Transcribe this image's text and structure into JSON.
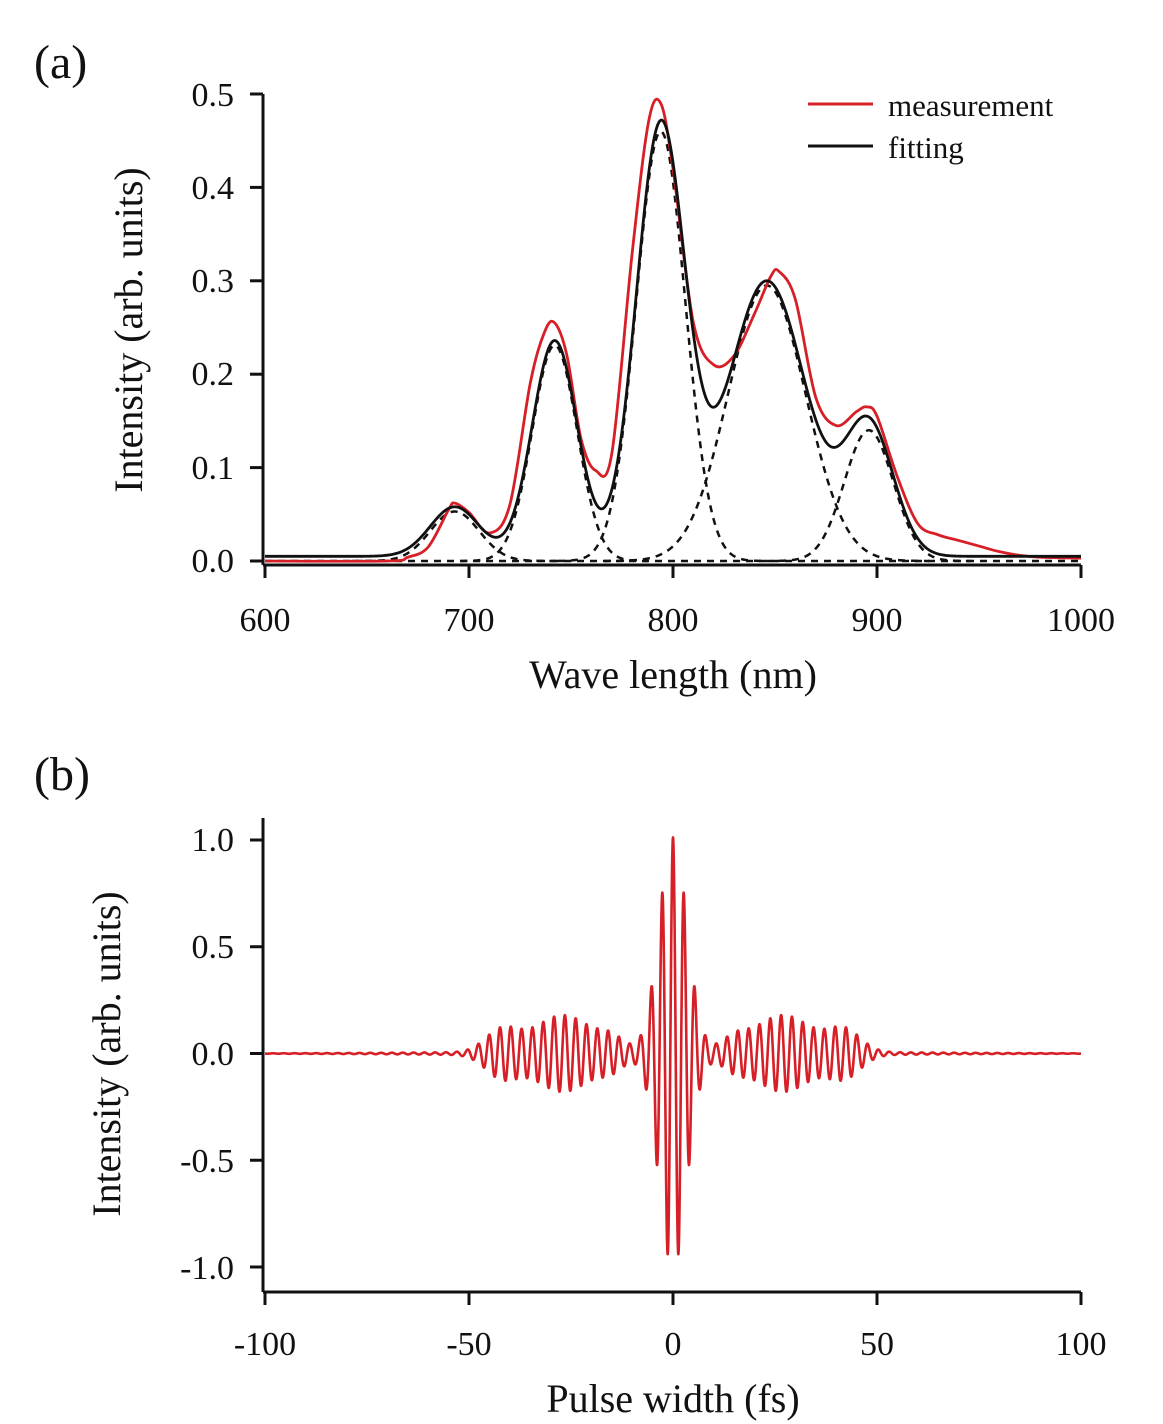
{
  "colors": {
    "measurement": "#d61f26",
    "fitting": "#111111",
    "component": "#111111",
    "pulse": "#d61f26"
  },
  "chart_data": [
    {
      "panel": "(a)",
      "type": "line",
      "xlabel": "Wave length (nm)",
      "ylabel": "Intensity (arb. units)",
      "xlim": [
        600,
        1000
      ],
      "ylim": [
        0,
        0.5
      ],
      "xticks": [
        600,
        700,
        800,
        900,
        1000
      ],
      "xtick_labels": [
        "600",
        "700",
        "800",
        "900",
        "1000"
      ],
      "yticks": [
        0,
        0.1,
        0.2,
        0.3,
        0.4,
        0.5
      ],
      "ytick_labels": [
        "0.0",
        "0.1",
        "0.2",
        "0.3",
        "0.4",
        "0.5"
      ],
      "legend": {
        "position": "top-right",
        "entries": [
          "measurement",
          "fitting"
        ]
      },
      "baseline": 0.005,
      "components": [
        {
          "center": 693,
          "amplitude": 0.053,
          "sigma": 12
        },
        {
          "center": 742,
          "amplitude": 0.231,
          "sigma": 11
        },
        {
          "center": 794,
          "amplitude": 0.46,
          "sigma": 12
        },
        {
          "center": 846,
          "amplitude": 0.295,
          "sigma": 19
        },
        {
          "center": 896,
          "amplitude": 0.14,
          "sigma": 12
        }
      ],
      "series": [
        {
          "name": "measurement",
          "style": "solid-red",
          "x": [
            600,
            660,
            670,
            680,
            690,
            693,
            700,
            710,
            720,
            730,
            737,
            742,
            748,
            755,
            762,
            770,
            780,
            788,
            794,
            800,
            810,
            820,
            830,
            840,
            848,
            852,
            860,
            870,
            880,
            890,
            895,
            900,
            910,
            920,
            930,
            940,
            950,
            960,
            970,
            980,
            1000
          ],
          "y": [
            0.0,
            0.0,
            0.004,
            0.015,
            0.055,
            0.062,
            0.052,
            0.03,
            0.06,
            0.19,
            0.245,
            0.255,
            0.22,
            0.13,
            0.097,
            0.115,
            0.33,
            0.47,
            0.49,
            0.42,
            0.255,
            0.21,
            0.22,
            0.265,
            0.305,
            0.31,
            0.28,
            0.175,
            0.145,
            0.16,
            0.165,
            0.155,
            0.09,
            0.04,
            0.028,
            0.022,
            0.016,
            0.01,
            0.006,
            0.004,
            0.003
          ]
        },
        {
          "name": "fitting",
          "style": "solid-black",
          "derived_from": "components"
        },
        {
          "name": "components",
          "style": "dashed-black",
          "derived_from": "components"
        }
      ]
    },
    {
      "panel": "(b)",
      "type": "line",
      "xlabel": "Pulse width (fs)",
      "ylabel": "Intensity (arb. units)",
      "xlim": [
        -100,
        100
      ],
      "ylim": [
        -1.0,
        1.0
      ],
      "xticks": [
        -100,
        -50,
        0,
        50,
        100
      ],
      "xtick_labels": [
        "-100",
        "-50",
        "0",
        "50",
        "100"
      ],
      "yticks": [
        -1.0,
        -0.5,
        0.0,
        0.5,
        1.0
      ],
      "ytick_labels": [
        "-1.0",
        "-0.5",
        "0.0",
        "0.5",
        "1.0"
      ],
      "series": [
        {
          "name": "pulse",
          "style": "solid-red",
          "carrier_period_fs": 2.65,
          "envelope": [
            {
              "center": 0,
              "amplitude": 1.0,
              "sigma": 3.4
            },
            {
              "center": -27,
              "amplitude": 0.17,
              "sigma": 7
            },
            {
              "center": 27,
              "amplitude": 0.17,
              "sigma": 7
            },
            {
              "center": -42,
              "amplitude": 0.1,
              "sigma": 4
            },
            {
              "center": 42,
              "amplitude": 0.1,
              "sigma": 4
            },
            {
              "center": -15,
              "amplitude": 0.05,
              "sigma": 3
            },
            {
              "center": 15,
              "amplitude": 0.05,
              "sigma": 3
            },
            {
              "center": 0,
              "amplitude": 0.012,
              "sigma": 45
            }
          ]
        }
      ]
    }
  ]
}
